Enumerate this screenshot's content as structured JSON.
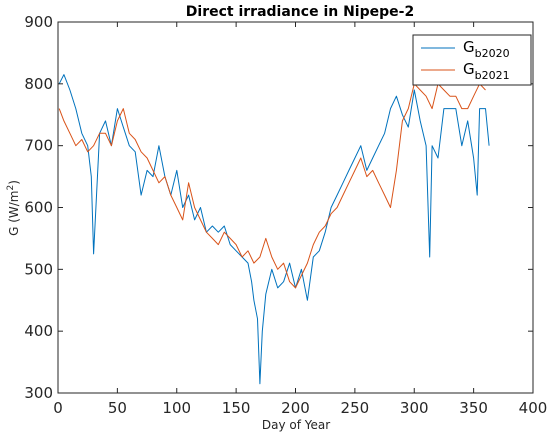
{
  "chart_data": {
    "type": "line",
    "title": "Direct irradiance in Nipepe-2",
    "xlabel": "Day of Year",
    "ylabel_main": "G (W/m",
    "ylabel_sup": "2",
    "ylabel_close": ")",
    "xlim": [
      0,
      400
    ],
    "ylim": [
      300,
      900
    ],
    "xticks": [
      0,
      50,
      100,
      150,
      200,
      250,
      300,
      350,
      400
    ],
    "yticks": [
      300,
      400,
      500,
      600,
      700,
      800,
      900
    ],
    "grid": false,
    "legend_position": "top-right",
    "series": [
      {
        "name_main": "G",
        "name_sub": "b2020",
        "color": "#0072BD",
        "x": [
          1,
          5,
          10,
          15,
          20,
          25,
          28,
          30,
          35,
          40,
          45,
          50,
          55,
          60,
          65,
          70,
          75,
          80,
          85,
          90,
          95,
          100,
          105,
          110,
          115,
          120,
          125,
          130,
          135,
          140,
          145,
          150,
          155,
          160,
          163,
          165,
          168,
          170,
          172,
          175,
          180,
          185,
          190,
          195,
          200,
          205,
          210,
          215,
          220,
          225,
          230,
          235,
          240,
          245,
          250,
          255,
          260,
          265,
          270,
          275,
          280,
          285,
          290,
          295,
          300,
          305,
          310,
          313,
          315,
          320,
          325,
          330,
          335,
          340,
          345,
          350,
          353,
          355,
          360,
          363
        ],
        "y": [
          800,
          815,
          790,
          760,
          720,
          700,
          650,
          525,
          720,
          740,
          700,
          760,
          730,
          700,
          690,
          620,
          660,
          650,
          700,
          650,
          620,
          660,
          600,
          620,
          580,
          600,
          560,
          570,
          560,
          570,
          540,
          530,
          520,
          510,
          480,
          450,
          420,
          315,
          400,
          460,
          500,
          470,
          480,
          510,
          470,
          500,
          450,
          520,
          530,
          560,
          600,
          620,
          640,
          660,
          680,
          700,
          660,
          680,
          700,
          720,
          760,
          780,
          750,
          730,
          790,
          740,
          700,
          520,
          700,
          680,
          760,
          760,
          760,
          700,
          740,
          680,
          620,
          760,
          760,
          700
        ]
      },
      {
        "name_main": "G",
        "name_sub": "b2021",
        "color": "#D95319",
        "x": [
          1,
          5,
          10,
          15,
          20,
          25,
          30,
          35,
          40,
          45,
          50,
          55,
          60,
          65,
          70,
          75,
          80,
          85,
          90,
          95,
          100,
          105,
          110,
          115,
          120,
          125,
          130,
          135,
          140,
          145,
          150,
          155,
          160,
          165,
          170,
          175,
          180,
          185,
          190,
          195,
          200,
          205,
          210,
          215,
          220,
          225,
          230,
          235,
          240,
          245,
          250,
          255,
          260,
          265,
          270,
          275,
          280,
          285,
          290,
          295,
          300,
          305,
          310,
          315,
          320,
          325,
          330,
          335,
          340,
          345,
          350,
          355,
          360
        ],
        "y": [
          760,
          740,
          720,
          700,
          710,
          690,
          700,
          720,
          720,
          700,
          740,
          760,
          720,
          710,
          690,
          680,
          660,
          640,
          650,
          620,
          600,
          580,
          640,
          600,
          580,
          560,
          550,
          540,
          560,
          550,
          540,
          520,
          530,
          510,
          520,
          550,
          520,
          500,
          510,
          480,
          470,
          490,
          510,
          540,
          560,
          570,
          590,
          600,
          620,
          640,
          660,
          680,
          650,
          660,
          640,
          620,
          600,
          660,
          740,
          760,
          800,
          790,
          780,
          760,
          800,
          790,
          780,
          780,
          760,
          760,
          780,
          800,
          790
        ]
      }
    ]
  }
}
